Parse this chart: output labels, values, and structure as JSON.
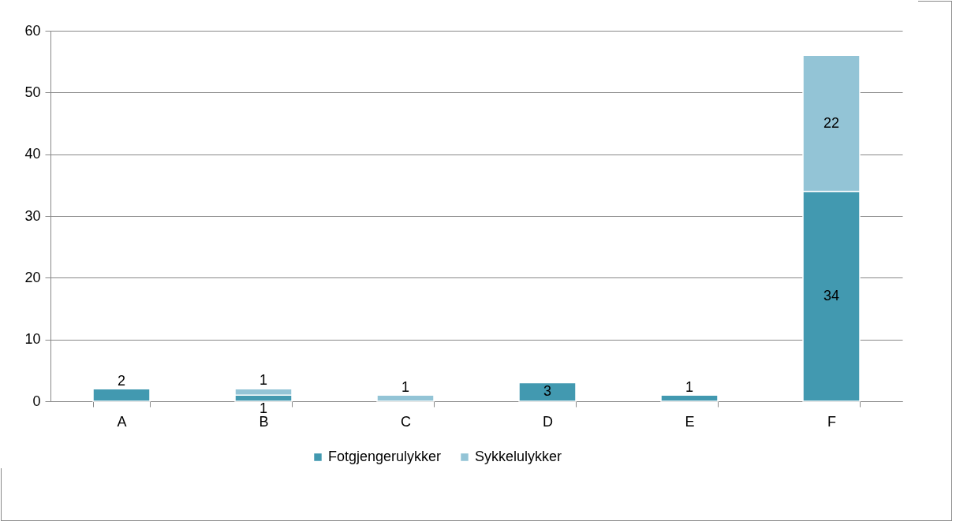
{
  "chart_data": {
    "type": "bar",
    "stacked": true,
    "categories": [
      "A",
      "B",
      "C",
      "D",
      "E",
      "F"
    ],
    "series": [
      {
        "name": "Fotgjengerulykker",
        "color": "#4299b0",
        "values": [
          2,
          1,
          null,
          3,
          1,
          34
        ]
      },
      {
        "name": "Sykkelulykker",
        "color": "#93c4d6",
        "values": [
          null,
          1,
          1,
          null,
          null,
          22
        ]
      }
    ],
    "ylim": [
      0,
      60
    ],
    "yticks": [
      0,
      10,
      20,
      30,
      40,
      50,
      60
    ],
    "grid": "y",
    "legend": "bottom",
    "data_labels": true
  }
}
